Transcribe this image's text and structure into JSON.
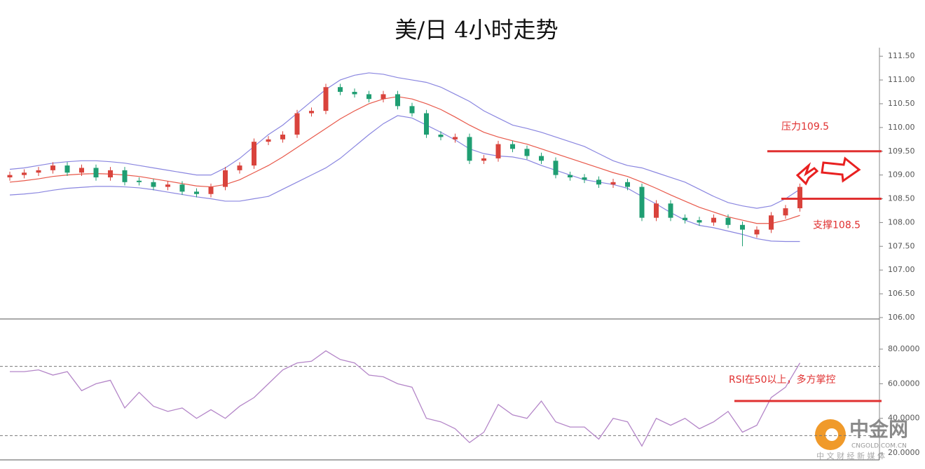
{
  "chart_data": [
    {
      "type": "candlestick",
      "title": "美/日 4小时走势",
      "up_color": "#d9433c",
      "down_color": "#1f9e72",
      "band_color": "#8a86e0",
      "middle_color": "#e8584a",
      "open": [
        108.95,
        109.0,
        109.05,
        109.1,
        109.2,
        109.05,
        109.15,
        108.95,
        109.1,
        108.88,
        108.85,
        108.75,
        108.8,
        108.65,
        108.6,
        108.75,
        109.1,
        109.2,
        109.7,
        109.75,
        109.85,
        110.3,
        110.35,
        110.85,
        110.75,
        110.7,
        110.6,
        110.7,
        110.45,
        110.3,
        109.85,
        109.75,
        109.8,
        109.3,
        109.35,
        109.65,
        109.55,
        109.4,
        109.3,
        109.0,
        108.95,
        108.9,
        108.8,
        108.85,
        108.75,
        108.1,
        108.4,
        108.1,
        108.05,
        108.0,
        108.1,
        107.95,
        107.75,
        107.85,
        108.15,
        108.3
      ],
      "high": [
        109.07,
        109.12,
        109.17,
        109.27,
        109.27,
        109.22,
        109.22,
        109.17,
        109.17,
        108.95,
        108.92,
        108.87,
        108.87,
        108.72,
        108.82,
        109.17,
        109.27,
        109.77,
        109.82,
        109.92,
        110.37,
        110.42,
        110.92,
        110.92,
        110.82,
        110.77,
        110.77,
        110.77,
        110.52,
        110.37,
        109.92,
        109.87,
        109.87,
        109.42,
        109.72,
        109.72,
        109.62,
        109.47,
        109.37,
        109.07,
        109.02,
        108.97,
        108.92,
        108.92,
        108.82,
        108.47,
        108.47,
        108.17,
        108.12,
        108.17,
        108.17,
        108.02,
        107.92,
        108.22,
        108.37,
        108.82
      ],
      "low": [
        108.88,
        108.93,
        108.98,
        109.03,
        108.98,
        108.98,
        108.88,
        108.88,
        108.78,
        108.78,
        108.68,
        108.68,
        108.58,
        108.53,
        108.53,
        108.68,
        109.03,
        109.13,
        109.63,
        109.68,
        109.78,
        110.23,
        110.28,
        110.68,
        110.63,
        110.53,
        110.53,
        110.38,
        110.23,
        109.78,
        109.73,
        109.68,
        109.23,
        109.23,
        109.28,
        109.48,
        109.33,
        109.23,
        108.93,
        108.88,
        108.83,
        108.73,
        108.73,
        108.68,
        108.03,
        108.03,
        108.03,
        107.98,
        107.93,
        107.93,
        107.88,
        107.5,
        107.68,
        107.78,
        108.08,
        108.23
      ],
      "close": [
        109.0,
        109.05,
        109.1,
        109.2,
        109.05,
        109.15,
        108.95,
        109.1,
        108.85,
        108.85,
        108.75,
        108.8,
        108.65,
        108.6,
        108.75,
        109.1,
        109.2,
        109.7,
        109.75,
        109.85,
        110.3,
        110.35,
        110.85,
        110.75,
        110.7,
        110.6,
        110.7,
        110.45,
        110.3,
        109.85,
        109.8,
        109.8,
        109.3,
        109.35,
        109.65,
        109.55,
        109.4,
        109.3,
        109.0,
        108.95,
        108.9,
        108.8,
        108.85,
        108.75,
        108.1,
        108.4,
        108.1,
        108.05,
        108.0,
        108.1,
        107.95,
        107.85,
        107.85,
        108.15,
        108.3,
        108.75
      ],
      "upper": [
        109.12,
        109.15,
        109.2,
        109.25,
        109.28,
        109.3,
        109.3,
        109.28,
        109.25,
        109.2,
        109.15,
        109.1,
        109.05,
        109.0,
        109.0,
        109.15,
        109.35,
        109.6,
        109.85,
        110.05,
        110.3,
        110.55,
        110.8,
        111.0,
        111.1,
        111.15,
        111.12,
        111.05,
        111.0,
        110.95,
        110.85,
        110.7,
        110.55,
        110.35,
        110.2,
        110.05,
        109.98,
        109.9,
        109.8,
        109.7,
        109.6,
        109.45,
        109.3,
        109.2,
        109.15,
        109.05,
        108.95,
        108.85,
        108.7,
        108.55,
        108.42,
        108.35,
        108.3,
        108.35,
        108.5,
        108.7
      ],
      "middle": [
        108.85,
        108.88,
        108.92,
        108.97,
        109.0,
        109.02,
        109.03,
        109.02,
        109.0,
        108.97,
        108.92,
        108.87,
        108.82,
        108.77,
        108.75,
        108.8,
        108.9,
        109.05,
        109.2,
        109.38,
        109.58,
        109.78,
        109.98,
        110.18,
        110.35,
        110.5,
        110.6,
        110.65,
        110.6,
        110.5,
        110.38,
        110.22,
        110.05,
        109.9,
        109.8,
        109.72,
        109.65,
        109.55,
        109.45,
        109.35,
        109.25,
        109.15,
        109.05,
        108.97,
        108.85,
        108.72,
        108.58,
        108.45,
        108.32,
        108.22,
        108.12,
        108.05,
        107.98,
        107.98,
        108.05,
        108.15
      ],
      "lower": [
        108.58,
        108.6,
        108.63,
        108.68,
        108.72,
        108.74,
        108.76,
        108.76,
        108.75,
        108.73,
        108.69,
        108.64,
        108.59,
        108.54,
        108.5,
        108.45,
        108.45,
        108.5,
        108.55,
        108.7,
        108.85,
        109.0,
        109.15,
        109.35,
        109.6,
        109.85,
        110.08,
        110.25,
        110.2,
        110.05,
        109.9,
        109.74,
        109.55,
        109.45,
        109.4,
        109.38,
        109.32,
        109.2,
        109.1,
        109.0,
        108.9,
        108.85,
        108.8,
        108.72,
        108.55,
        108.39,
        108.21,
        108.05,
        107.94,
        107.89,
        107.82,
        107.75,
        107.66,
        107.61,
        107.6,
        107.6
      ],
      "ylim": [
        105.97,
        111.68
      ],
      "yticks": [
        {
          "value": 111.5,
          "label": "111.50"
        },
        {
          "value": 111,
          "label": "111.00"
        },
        {
          "value": 110.5,
          "label": "110.50"
        },
        {
          "value": 110,
          "label": "110.00"
        },
        {
          "value": 109.5,
          "label": "109.50"
        },
        {
          "value": 109,
          "label": "109.00"
        },
        {
          "value": 108.5,
          "label": "108.50"
        },
        {
          "value": 108,
          "label": "108.00"
        },
        {
          "value": 107.5,
          "label": "107.50"
        },
        {
          "value": 107,
          "label": "107.00"
        },
        {
          "value": 106.5,
          "label": "106.50"
        },
        {
          "value": 106,
          "label": "106.00"
        }
      ],
      "annotations": [
        {
          "text": "压力109.5",
          "value": 109.5,
          "color": "#e03030"
        },
        {
          "text": "支撑108.5",
          "value": 108.5,
          "color": "#e03030"
        }
      ]
    },
    {
      "type": "line",
      "color": "#b486c8",
      "values": [
        67,
        67,
        68,
        65,
        67,
        56,
        60,
        62,
        46,
        55,
        47,
        44,
        46,
        40,
        45,
        40,
        47,
        52,
        60,
        68,
        72,
        73,
        79,
        74,
        72,
        65,
        64,
        60,
        58,
        40,
        38,
        34,
        26,
        32,
        48,
        42,
        40,
        50,
        38,
        35,
        35,
        28,
        40,
        38,
        24,
        40,
        36,
        40,
        34,
        38,
        44,
        32,
        36,
        52,
        58,
        72
      ],
      "ylim": [
        16,
        96.2
      ],
      "yticks": [
        {
          "value": 80,
          "label": "80.0000"
        },
        {
          "value": 60,
          "label": "60.0000"
        },
        {
          "value": 40,
          "label": "40.0000"
        },
        {
          "value": 20,
          "label": "20.0000"
        }
      ],
      "reference_lines": [
        70,
        30
      ],
      "annotations": [
        {
          "text": "RSI在50以上，多方掌控",
          "value": 50,
          "color": "#e03030"
        }
      ]
    }
  ],
  "watermark": {
    "name": "中金网",
    "site": "CNGOLD.COM.CN",
    "tagline": "中 文 财 经 新 媒 体"
  }
}
